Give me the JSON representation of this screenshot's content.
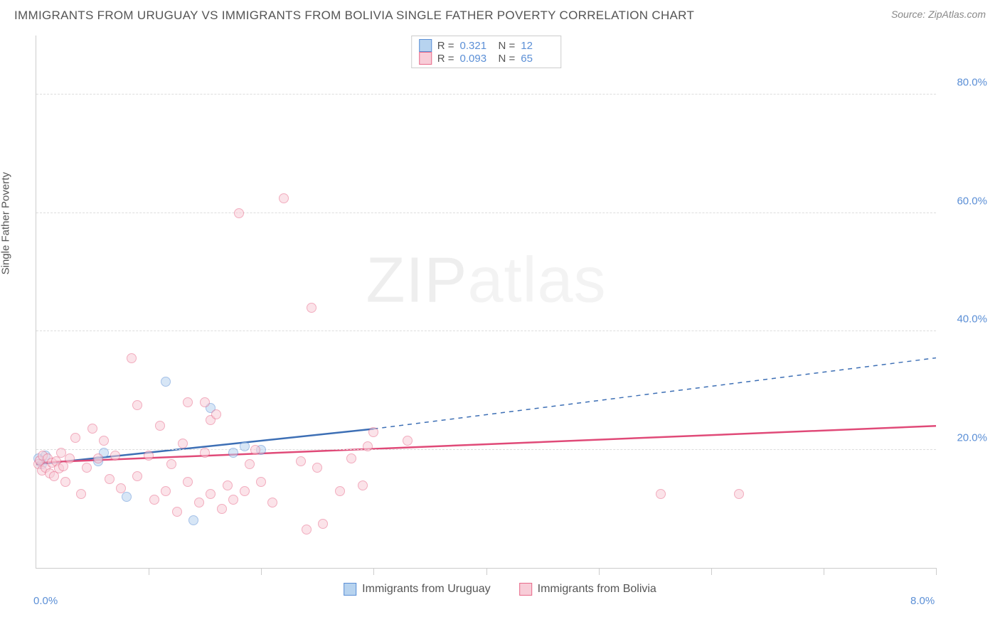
{
  "title": "IMMIGRANTS FROM URUGUAY VS IMMIGRANTS FROM BOLIVIA SINGLE FATHER POVERTY CORRELATION CHART",
  "source": "Source: ZipAtlas.com",
  "ylabel": "Single Father Poverty",
  "watermark": {
    "part1": "ZIP",
    "part2": "atlas"
  },
  "chart": {
    "type": "scatter",
    "background_color": "#ffffff",
    "grid_color": "#dddddd",
    "axis_color": "#cccccc",
    "label_color": "#5b8fd6",
    "text_color": "#555555",
    "xlim": [
      0,
      8
    ],
    "ylim": [
      0,
      90
    ],
    "ygrid": [
      20,
      40,
      60,
      80
    ],
    "ytick_labels": [
      "20.0%",
      "40.0%",
      "60.0%",
      "80.0%"
    ],
    "xticks": [
      1,
      2,
      3,
      4,
      5,
      6,
      7,
      8
    ],
    "xtick_labels": {
      "0": "0.0%",
      "8": "8.0%"
    },
    "legend_stats": [
      {
        "swatch_fill": "#b7d3ef",
        "swatch_border": "#5b8fd6",
        "r": "0.321",
        "n": "12"
      },
      {
        "swatch_fill": "#f8cdd8",
        "swatch_border": "#e86a8a",
        "r": "0.093",
        "n": "65"
      }
    ],
    "bottom_legend": [
      {
        "swatch_fill": "#b7d3ef",
        "swatch_border": "#5b8fd6",
        "label": "Immigrants from Uruguay"
      },
      {
        "swatch_fill": "#f8cdd8",
        "swatch_border": "#e86a8a",
        "label": "Immigrants from Bolivia"
      }
    ],
    "marker_size": 14,
    "marker_opacity": 0.55,
    "series": [
      {
        "name": "uruguay",
        "fill": "#b7d3ef",
        "border": "#5b8fd6",
        "trend": {
          "x1": 0,
          "y1": 17.5,
          "x2": 3.0,
          "y2": 23.5,
          "x2_ext": 8.0,
          "y2_ext": 35.5,
          "solid_color": "#3d6fb5",
          "width": 2.5
        },
        "points": [
          [
            0.02,
            18.5
          ],
          [
            0.05,
            17.5
          ],
          [
            0.08,
            19.0
          ],
          [
            0.55,
            18.0
          ],
          [
            0.6,
            19.5
          ],
          [
            0.8,
            12.0
          ],
          [
            1.15,
            31.5
          ],
          [
            1.4,
            8.0
          ],
          [
            1.55,
            27.0
          ],
          [
            1.75,
            19.5
          ],
          [
            1.85,
            20.5
          ],
          [
            2.0,
            20.0
          ]
        ]
      },
      {
        "name": "bolivia",
        "fill": "#f8cdd8",
        "border": "#e86a8a",
        "trend": {
          "x1": 0,
          "y1": 17.8,
          "x2": 8.0,
          "y2": 24.0,
          "solid_color": "#e04a78",
          "width": 2.5
        },
        "points": [
          [
            0.02,
            17.5
          ],
          [
            0.03,
            18.2
          ],
          [
            0.05,
            16.5
          ],
          [
            0.06,
            19.0
          ],
          [
            0.08,
            17.0
          ],
          [
            0.1,
            18.5
          ],
          [
            0.12,
            16.0
          ],
          [
            0.14,
            17.8
          ],
          [
            0.16,
            15.5
          ],
          [
            0.18,
            18.0
          ],
          [
            0.2,
            16.8
          ],
          [
            0.22,
            19.5
          ],
          [
            0.24,
            17.2
          ],
          [
            0.26,
            14.5
          ],
          [
            0.3,
            18.5
          ],
          [
            0.35,
            22.0
          ],
          [
            0.4,
            12.5
          ],
          [
            0.45,
            17.0
          ],
          [
            0.5,
            23.5
          ],
          [
            0.55,
            18.5
          ],
          [
            0.6,
            21.5
          ],
          [
            0.65,
            15.0
          ],
          [
            0.7,
            19.0
          ],
          [
            0.75,
            13.5
          ],
          [
            0.85,
            35.5
          ],
          [
            0.9,
            27.5
          ],
          [
            0.9,
            15.5
          ],
          [
            1.0,
            19.0
          ],
          [
            1.05,
            11.5
          ],
          [
            1.1,
            24.0
          ],
          [
            1.15,
            13.0
          ],
          [
            1.2,
            17.5
          ],
          [
            1.25,
            9.5
          ],
          [
            1.3,
            21.0
          ],
          [
            1.35,
            14.5
          ],
          [
            1.35,
            28.0
          ],
          [
            1.45,
            11.0
          ],
          [
            1.5,
            28.0
          ],
          [
            1.5,
            19.5
          ],
          [
            1.55,
            12.5
          ],
          [
            1.55,
            25.0
          ],
          [
            1.6,
            26.0
          ],
          [
            1.65,
            10.0
          ],
          [
            1.7,
            14.0
          ],
          [
            1.75,
            11.5
          ],
          [
            1.8,
            60.0
          ],
          [
            1.85,
            13.0
          ],
          [
            1.9,
            17.5
          ],
          [
            1.95,
            20.0
          ],
          [
            2.0,
            14.5
          ],
          [
            2.1,
            11.0
          ],
          [
            2.2,
            62.5
          ],
          [
            2.35,
            18.0
          ],
          [
            2.4,
            6.5
          ],
          [
            2.45,
            44.0
          ],
          [
            2.5,
            17.0
          ],
          [
            2.55,
            7.5
          ],
          [
            2.7,
            13.0
          ],
          [
            2.8,
            18.5
          ],
          [
            2.9,
            14.0
          ],
          [
            2.95,
            20.5
          ],
          [
            3.0,
            23.0
          ],
          [
            3.3,
            21.5
          ],
          [
            5.55,
            12.5
          ],
          [
            6.25,
            12.5
          ]
        ]
      }
    ]
  }
}
